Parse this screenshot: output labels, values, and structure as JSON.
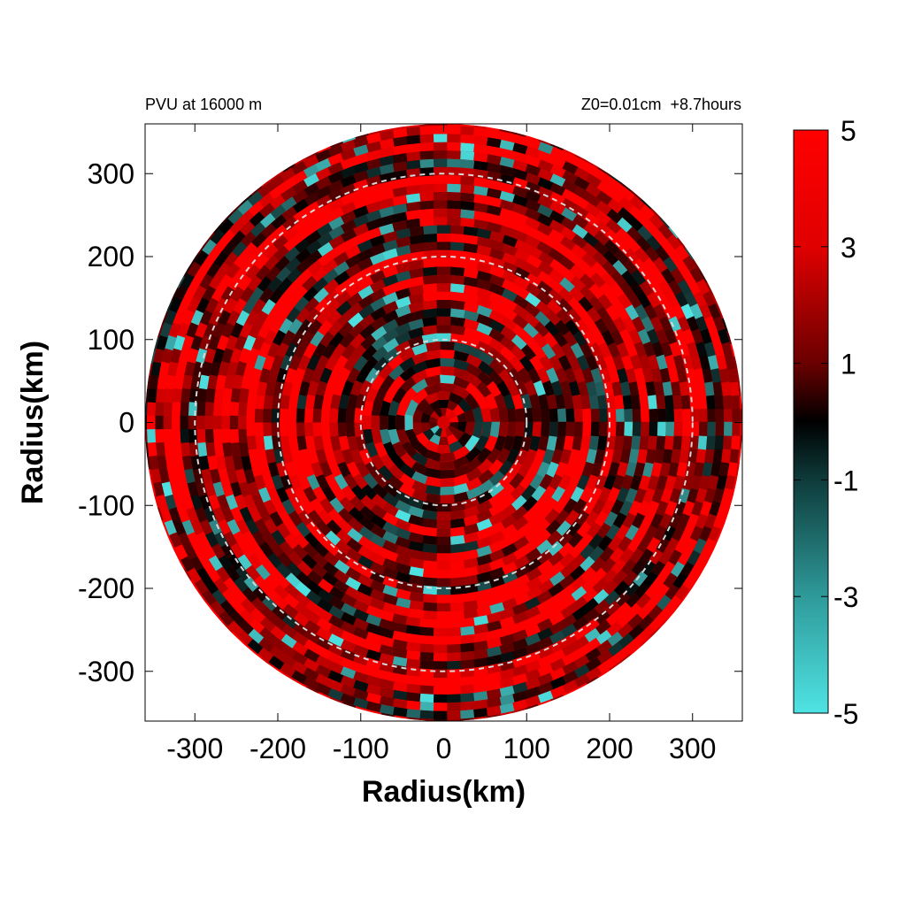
{
  "chart_data": {
    "type": "heatmap",
    "title_left": "PVU at 16000 m",
    "title_right": "Z0=0.01cm  +8.7hours",
    "xlabel": "Radius(km)",
    "ylabel": "Radius(km)",
    "xlim": [
      -360,
      360
    ],
    "ylim": [
      -360,
      360
    ],
    "x_ticks": [
      -300,
      -200,
      -100,
      0,
      100,
      200,
      300
    ],
    "y_ticks": [
      300,
      200,
      100,
      0,
      -100,
      -200,
      -300
    ],
    "domain_radius_km": 360,
    "reference_circles_km": [
      100,
      200,
      300
    ],
    "grid": false,
    "colorbar": {
      "range": [
        -5,
        5
      ],
      "ticks": [
        5,
        3,
        1,
        -1,
        -3,
        -5
      ],
      "colors": {
        "negative": "#4fe3e3",
        "zero": "#000000",
        "positive": "#ff0000"
      }
    }
  }
}
